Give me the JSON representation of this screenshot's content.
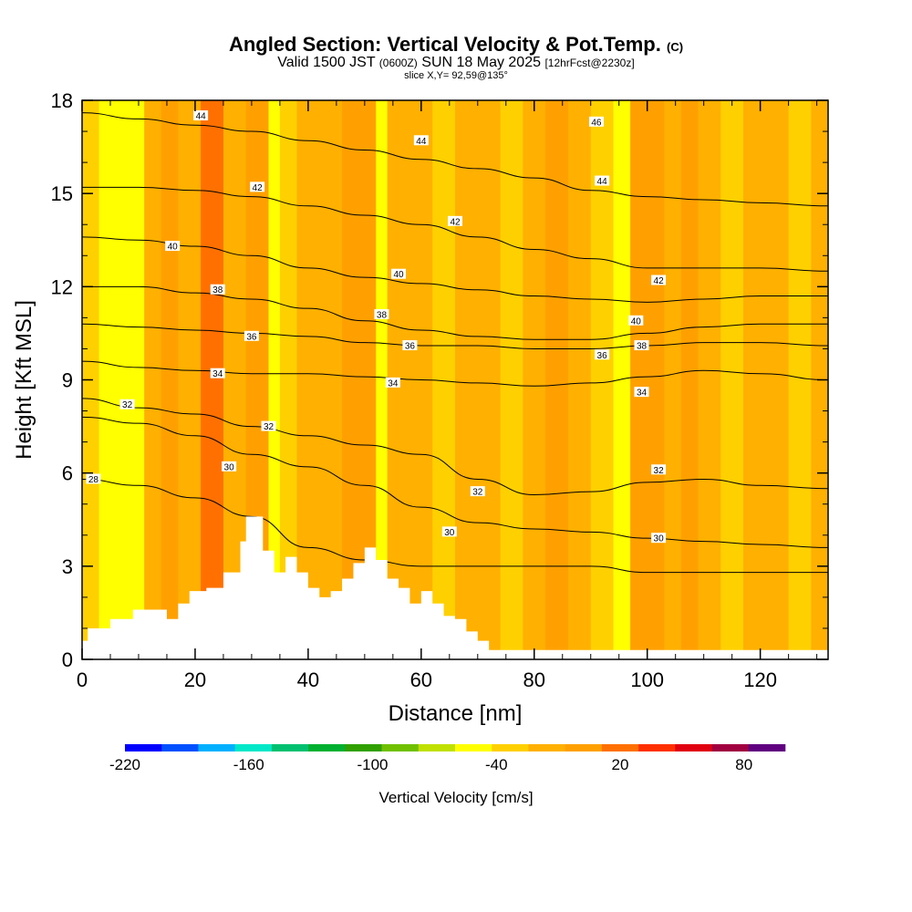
{
  "title": {
    "main": "Angled Section: Vertical Velocity & Pot.Temp.",
    "unit_tag": "(C)",
    "valid_text": "Valid 1500 JST",
    "valid_utc": "(0600Z)",
    "valid_date": "SUN 18 May 2025",
    "forecast": "[12hrFcst@2230z]",
    "slice": "slice X,Y= 92,59@135°"
  },
  "chart_data": {
    "type": "heatmap",
    "xlabel": "Distance [nm]",
    "ylabel": "Height [Kft MSL]",
    "xlim": [
      0,
      132
    ],
    "ylim": [
      0,
      18
    ],
    "x_ticks": [
      "0",
      "20",
      "40",
      "60",
      "80",
      "100",
      "120"
    ],
    "y_ticks": [
      "0",
      "3",
      "6",
      "9",
      "12",
      "15",
      "18"
    ],
    "terrain": {
      "x": [
        0,
        1,
        5,
        9,
        13,
        15,
        17,
        19,
        22,
        25,
        28,
        29,
        31,
        32,
        34,
        36,
        38,
        40,
        42,
        44,
        46,
        48,
        50,
        52,
        54,
        56,
        58,
        60,
        62,
        64,
        66,
        68,
        70,
        72,
        132
      ],
      "height": [
        0.6,
        1.0,
        1.3,
        1.6,
        1.6,
        1.3,
        1.8,
        2.2,
        2.3,
        2.8,
        3.8,
        4.6,
        4.6,
        3.5,
        2.8,
        3.3,
        2.8,
        2.3,
        2.0,
        2.2,
        2.6,
        3.1,
        3.6,
        3.2,
        2.6,
        2.3,
        1.8,
        2.2,
        1.8,
        1.4,
        1.3,
        0.9,
        0.6,
        0.3,
        0.3
      ]
    },
    "vertical_velocity_columns": [
      {
        "x": 0,
        "w": 3,
        "value": -20
      },
      {
        "x": 3,
        "w": 4,
        "value": -40
      },
      {
        "x": 7,
        "w": 4,
        "value": -30
      },
      {
        "x": 11,
        "w": 3,
        "value": 0
      },
      {
        "x": 14,
        "w": 3,
        "value": 30
      },
      {
        "x": 17,
        "w": 4,
        "value": 0
      },
      {
        "x": 21,
        "w": 4,
        "value": 40
      },
      {
        "x": 25,
        "w": 4,
        "value": 0
      },
      {
        "x": 29,
        "w": 2,
        "value": 20
      },
      {
        "x": 31,
        "w": 2,
        "value": 35
      },
      {
        "x": 33,
        "w": 2,
        "value": -40
      },
      {
        "x": 35,
        "w": 3,
        "value": -10
      },
      {
        "x": 38,
        "w": 4,
        "value": 10
      },
      {
        "x": 42,
        "w": 4,
        "value": 0
      },
      {
        "x": 46,
        "w": 3,
        "value": 20
      },
      {
        "x": 49,
        "w": 3,
        "value": 35
      },
      {
        "x": 52,
        "w": 2,
        "value": -30
      },
      {
        "x": 54,
        "w": 4,
        "value": 0
      },
      {
        "x": 58,
        "w": 4,
        "value": 10
      },
      {
        "x": 62,
        "w": 4,
        "value": -10
      },
      {
        "x": 66,
        "w": 4,
        "value": 10
      },
      {
        "x": 70,
        "w": 4,
        "value": 0
      },
      {
        "x": 74,
        "w": 4,
        "value": -10
      },
      {
        "x": 78,
        "w": 4,
        "value": 10
      },
      {
        "x": 82,
        "w": 4,
        "value": 20
      },
      {
        "x": 86,
        "w": 4,
        "value": 0
      },
      {
        "x": 90,
        "w": 4,
        "value": -10
      },
      {
        "x": 94,
        "w": 3,
        "value": -30
      },
      {
        "x": 97,
        "w": 3,
        "value": 20
      },
      {
        "x": 100,
        "w": 3,
        "value": 25
      },
      {
        "x": 103,
        "w": 3,
        "value": 10
      },
      {
        "x": 106,
        "w": 3,
        "value": 20
      },
      {
        "x": 109,
        "w": 4,
        "value": 0
      },
      {
        "x": 113,
        "w": 4,
        "value": -10
      },
      {
        "x": 117,
        "w": 4,
        "value": 10
      },
      {
        "x": 121,
        "w": 4,
        "value": 0
      },
      {
        "x": 125,
        "w": 4,
        "value": -10
      },
      {
        "x": 129,
        "w": 3,
        "value": 0
      }
    ],
    "pot_temp_contours": [
      {
        "value": 28,
        "heights": [
          5.8,
          5.6,
          5.2,
          4.6,
          3.6,
          3.2,
          3.0,
          3.0,
          3.0,
          3.0,
          2.8,
          2.8,
          2.8,
          2.8
        ]
      },
      {
        "value": 30,
        "heights": [
          7.8,
          7.6,
          7.2,
          6.6,
          6.2,
          5.6,
          4.9,
          4.4,
          4.2,
          4.1,
          3.9,
          3.8,
          3.7,
          3.6
        ]
      },
      {
        "value": 32,
        "heights": [
          8.4,
          8.1,
          7.9,
          7.5,
          7.2,
          6.9,
          6.6,
          5.8,
          5.3,
          5.4,
          5.7,
          5.8,
          5.6,
          5.5
        ]
      },
      {
        "value": 34,
        "heights": [
          9.6,
          9.4,
          9.3,
          9.2,
          9.2,
          9.1,
          9.0,
          8.9,
          8.8,
          8.9,
          9.1,
          9.3,
          9.2,
          9.0
        ]
      },
      {
        "value": 36,
        "heights": [
          10.8,
          10.7,
          10.6,
          10.5,
          10.4,
          10.2,
          10.1,
          10.1,
          10.0,
          10.0,
          10.1,
          10.2,
          10.2,
          10.1
        ]
      },
      {
        "value": 38,
        "heights": [
          12.0,
          12.0,
          11.8,
          11.6,
          11.3,
          10.9,
          10.6,
          10.4,
          10.3,
          10.3,
          10.5,
          10.7,
          10.8,
          10.8
        ]
      },
      {
        "value": 40,
        "heights": [
          13.6,
          13.5,
          13.3,
          13.0,
          12.6,
          12.3,
          12.1,
          11.9,
          11.7,
          11.6,
          11.5,
          11.6,
          11.7,
          11.7
        ]
      },
      {
        "value": 42,
        "heights": [
          15.2,
          15.2,
          15.1,
          14.9,
          14.6,
          14.3,
          14.0,
          13.6,
          13.2,
          12.9,
          12.6,
          12.6,
          12.6,
          12.5
        ]
      },
      {
        "value": 44,
        "heights": [
          17.6,
          17.4,
          17.2,
          17.0,
          16.7,
          16.4,
          16.1,
          15.8,
          15.5,
          15.1,
          14.9,
          14.8,
          14.7,
          14.6
        ]
      }
    ],
    "contour_x": [
      0,
      10,
      20,
      30,
      40,
      50,
      60,
      70,
      80,
      90,
      100,
      110,
      120,
      132
    ],
    "contour_labels": [
      {
        "text": "44",
        "x": 21,
        "y": 17.5
      },
      {
        "text": "44",
        "x": 60,
        "y": 16.7
      },
      {
        "text": "46",
        "x": 91,
        "y": 17.3
      },
      {
        "text": "42",
        "x": 31,
        "y": 15.2
      },
      {
        "text": "44",
        "x": 92,
        "y": 15.4
      },
      {
        "text": "42",
        "x": 66,
        "y": 14.1
      },
      {
        "text": "40",
        "x": 16,
        "y": 13.3
      },
      {
        "text": "40",
        "x": 56,
        "y": 12.4
      },
      {
        "text": "42",
        "x": 102,
        "y": 12.2
      },
      {
        "text": "38",
        "x": 24,
        "y": 11.9
      },
      {
        "text": "38",
        "x": 53,
        "y": 11.1
      },
      {
        "text": "40",
        "x": 98,
        "y": 10.9
      },
      {
        "text": "36",
        "x": 30,
        "y": 10.4
      },
      {
        "text": "36",
        "x": 58,
        "y": 10.1
      },
      {
        "text": "38",
        "x": 99,
        "y": 10.1
      },
      {
        "text": "36",
        "x": 92,
        "y": 9.8
      },
      {
        "text": "34",
        "x": 24,
        "y": 9.2
      },
      {
        "text": "34",
        "x": 55,
        "y": 8.9
      },
      {
        "text": "34",
        "x": 99,
        "y": 8.6
      },
      {
        "text": "32",
        "x": 8,
        "y": 8.2
      },
      {
        "text": "32",
        "x": 33,
        "y": 7.5
      },
      {
        "text": "30",
        "x": 26,
        "y": 6.2
      },
      {
        "text": "32",
        "x": 102,
        "y": 6.1
      },
      {
        "text": "28",
        "x": 2,
        "y": 5.8
      },
      {
        "text": "32",
        "x": 70,
        "y": 5.4
      },
      {
        "text": "30",
        "x": 65,
        "y": 4.1
      },
      {
        "text": "30",
        "x": 102,
        "y": 3.9
      }
    ],
    "colorbar": {
      "label": "Vertical Velocity [cm/s]",
      "min": -220,
      "max": 100,
      "step": 20,
      "tick_labels": [
        "-220",
        "-160",
        "-100",
        "-40",
        "20",
        "80"
      ],
      "tick_values": [
        -220,
        -160,
        -100,
        -40,
        20,
        80
      ],
      "colors": [
        "#0000ff",
        "#0050ff",
        "#00b0ff",
        "#00e8c8",
        "#00c070",
        "#00b030",
        "#30a000",
        "#70c000",
        "#c0e000",
        "#ffff00",
        "#ffd000",
        "#ffb000",
        "#ffa000",
        "#ff7000",
        "#ff3000",
        "#e00010",
        "#a00040",
        "#600080"
      ]
    }
  }
}
